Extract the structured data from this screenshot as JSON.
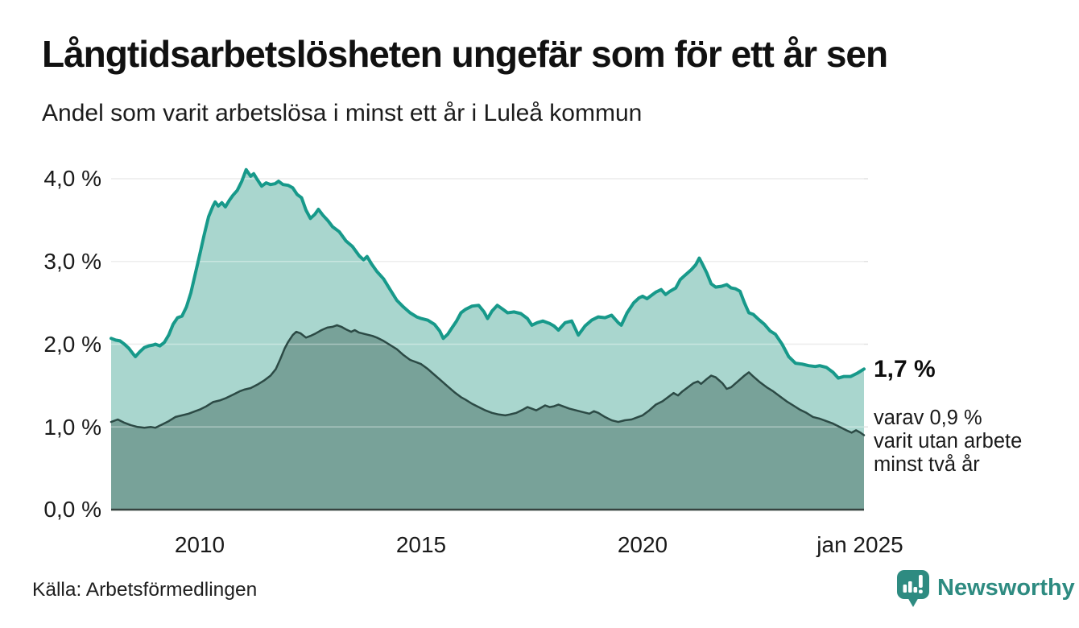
{
  "header": {
    "title": "Långtidsarbetslösheten ungefär som för ett år sen",
    "subtitle": "Andel som varit arbetslösa i minst ett år i Luleå kommun"
  },
  "annotations": {
    "latest_value": "1,7 %",
    "secondary_line1": "varav 0,9 %",
    "secondary_line2": "varit utan arbete",
    "secondary_line3": "minst två år"
  },
  "footer": {
    "source": "Källa: Arbetsförmedlingen",
    "brand_name": "Newsworthy",
    "brand_color": "#2e8b81",
    "brand_icon": "newsworthy-speech-bubble-bar-chart-icon"
  },
  "chart_data": {
    "type": "area",
    "title": "Långtidsarbetslösheten ungefär som för ett år sen",
    "xlabel": "",
    "ylabel": "",
    "x_range_years": [
      2008.0,
      2025.0
    ],
    "ylim": [
      0.0,
      4.3
    ],
    "grid": true,
    "gridline_color": "#e2e2e2",
    "baseline_color": "#36423f",
    "y_ticks": [
      {
        "label": "0,0 %",
        "value": 0.0
      },
      {
        "label": "1,0 %",
        "value": 1.0
      },
      {
        "label": "2,0 %",
        "value": 2.0
      },
      {
        "label": "3,0 %",
        "value": 3.0
      },
      {
        "label": "4,0 %",
        "value": 4.0
      }
    ],
    "x_ticks": [
      {
        "label": "2010",
        "year": 2010
      },
      {
        "label": "2015",
        "year": 2015
      },
      {
        "label": "2020",
        "year": 2020
      },
      {
        "label": "jan 2025",
        "year": 2025
      }
    ],
    "series": [
      {
        "name": "Arbetslösa minst ett år",
        "line_color": "#17998a",
        "fill_color": "#a9d6ce",
        "line_width": 4,
        "points": [
          [
            2008.0,
            2.07
          ],
          [
            2008.1,
            2.05
          ],
          [
            2008.2,
            2.04
          ],
          [
            2008.3,
            2.0
          ],
          [
            2008.4,
            1.95
          ],
          [
            2008.5,
            1.88
          ],
          [
            2008.55,
            1.85
          ],
          [
            2008.65,
            1.91
          ],
          [
            2008.75,
            1.96
          ],
          [
            2008.85,
            1.98
          ],
          [
            2008.95,
            1.99
          ],
          [
            2009.0,
            2.0
          ],
          [
            2009.1,
            1.98
          ],
          [
            2009.2,
            2.02
          ],
          [
            2009.3,
            2.11
          ],
          [
            2009.4,
            2.24
          ],
          [
            2009.5,
            2.32
          ],
          [
            2009.6,
            2.34
          ],
          [
            2009.7,
            2.45
          ],
          [
            2009.8,
            2.62
          ],
          [
            2009.9,
            2.85
          ],
          [
            2010.0,
            3.08
          ],
          [
            2010.1,
            3.32
          ],
          [
            2010.2,
            3.54
          ],
          [
            2010.3,
            3.67
          ],
          [
            2010.35,
            3.72
          ],
          [
            2010.42,
            3.67
          ],
          [
            2010.5,
            3.71
          ],
          [
            2010.58,
            3.66
          ],
          [
            2010.67,
            3.74
          ],
          [
            2010.75,
            3.8
          ],
          [
            2010.85,
            3.86
          ],
          [
            2010.95,
            3.97
          ],
          [
            2011.05,
            4.11
          ],
          [
            2011.15,
            4.03
          ],
          [
            2011.22,
            4.06
          ],
          [
            2011.3,
            3.99
          ],
          [
            2011.4,
            3.91
          ],
          [
            2011.5,
            3.95
          ],
          [
            2011.6,
            3.93
          ],
          [
            2011.7,
            3.94
          ],
          [
            2011.78,
            3.97
          ],
          [
            2011.88,
            3.93
          ],
          [
            2012.0,
            3.92
          ],
          [
            2012.1,
            3.89
          ],
          [
            2012.2,
            3.81
          ],
          [
            2012.3,
            3.77
          ],
          [
            2012.4,
            3.62
          ],
          [
            2012.5,
            3.52
          ],
          [
            2012.6,
            3.57
          ],
          [
            2012.68,
            3.63
          ],
          [
            2012.78,
            3.56
          ],
          [
            2012.9,
            3.49
          ],
          [
            2013.0,
            3.42
          ],
          [
            2013.15,
            3.36
          ],
          [
            2013.3,
            3.25
          ],
          [
            2013.45,
            3.18
          ],
          [
            2013.6,
            3.07
          ],
          [
            2013.7,
            3.02
          ],
          [
            2013.78,
            3.06
          ],
          [
            2013.88,
            2.97
          ],
          [
            2014.0,
            2.88
          ],
          [
            2014.15,
            2.79
          ],
          [
            2014.3,
            2.66
          ],
          [
            2014.45,
            2.53
          ],
          [
            2014.6,
            2.45
          ],
          [
            2014.75,
            2.38
          ],
          [
            2014.9,
            2.33
          ],
          [
            2015.0,
            2.31
          ],
          [
            2015.15,
            2.29
          ],
          [
            2015.3,
            2.24
          ],
          [
            2015.42,
            2.16
          ],
          [
            2015.5,
            2.07
          ],
          [
            2015.6,
            2.12
          ],
          [
            2015.7,
            2.2
          ],
          [
            2015.8,
            2.28
          ],
          [
            2015.9,
            2.38
          ],
          [
            2016.0,
            2.42
          ],
          [
            2016.15,
            2.46
          ],
          [
            2016.3,
            2.47
          ],
          [
            2016.42,
            2.39
          ],
          [
            2016.5,
            2.31
          ],
          [
            2016.6,
            2.4
          ],
          [
            2016.72,
            2.47
          ],
          [
            2016.85,
            2.42
          ],
          [
            2016.95,
            2.38
          ],
          [
            2017.1,
            2.39
          ],
          [
            2017.25,
            2.37
          ],
          [
            2017.4,
            2.31
          ],
          [
            2017.5,
            2.23
          ],
          [
            2017.62,
            2.26
          ],
          [
            2017.75,
            2.28
          ],
          [
            2017.9,
            2.25
          ],
          [
            2018.0,
            2.22
          ],
          [
            2018.1,
            2.17
          ],
          [
            2018.25,
            2.26
          ],
          [
            2018.4,
            2.28
          ],
          [
            2018.55,
            2.11
          ],
          [
            2018.7,
            2.22
          ],
          [
            2018.85,
            2.29
          ],
          [
            2019.0,
            2.33
          ],
          [
            2019.15,
            2.32
          ],
          [
            2019.3,
            2.35
          ],
          [
            2019.45,
            2.26
          ],
          [
            2019.52,
            2.23
          ],
          [
            2019.65,
            2.38
          ],
          [
            2019.8,
            2.5
          ],
          [
            2019.92,
            2.56
          ],
          [
            2020.0,
            2.58
          ],
          [
            2020.1,
            2.55
          ],
          [
            2020.2,
            2.59
          ],
          [
            2020.3,
            2.63
          ],
          [
            2020.42,
            2.66
          ],
          [
            2020.52,
            2.6
          ],
          [
            2020.62,
            2.64
          ],
          [
            2020.75,
            2.68
          ],
          [
            2020.85,
            2.78
          ],
          [
            2020.95,
            2.83
          ],
          [
            2021.1,
            2.9
          ],
          [
            2021.2,
            2.96
          ],
          [
            2021.28,
            3.04
          ],
          [
            2021.35,
            2.97
          ],
          [
            2021.45,
            2.86
          ],
          [
            2021.55,
            2.73
          ],
          [
            2021.65,
            2.69
          ],
          [
            2021.78,
            2.7
          ],
          [
            2021.9,
            2.72
          ],
          [
            2022.0,
            2.68
          ],
          [
            2022.1,
            2.67
          ],
          [
            2022.2,
            2.64
          ],
          [
            2022.3,
            2.5
          ],
          [
            2022.4,
            2.38
          ],
          [
            2022.5,
            2.36
          ],
          [
            2022.62,
            2.3
          ],
          [
            2022.75,
            2.24
          ],
          [
            2022.88,
            2.16
          ],
          [
            2023.0,
            2.12
          ],
          [
            2023.15,
            2.0
          ],
          [
            2023.3,
            1.85
          ],
          [
            2023.45,
            1.77
          ],
          [
            2023.6,
            1.76
          ],
          [
            2023.75,
            1.74
          ],
          [
            2023.9,
            1.73
          ],
          [
            2024.0,
            1.74
          ],
          [
            2024.15,
            1.72
          ],
          [
            2024.3,
            1.66
          ],
          [
            2024.42,
            1.59
          ],
          [
            2024.55,
            1.61
          ],
          [
            2024.7,
            1.61
          ],
          [
            2024.85,
            1.65
          ],
          [
            2025.0,
            1.7
          ]
        ]
      },
      {
        "name": "Varav utan arbete minst två år",
        "line_color": "#2c4a45",
        "fill_color": "#78a299",
        "line_width": 2.5,
        "points": [
          [
            2008.0,
            1.06
          ],
          [
            2008.15,
            1.09
          ],
          [
            2008.3,
            1.05
          ],
          [
            2008.45,
            1.02
          ],
          [
            2008.6,
            1.0
          ],
          [
            2008.75,
            0.99
          ],
          [
            2008.9,
            1.0
          ],
          [
            2009.0,
            0.99
          ],
          [
            2009.15,
            1.03
          ],
          [
            2009.3,
            1.07
          ],
          [
            2009.45,
            1.12
          ],
          [
            2009.6,
            1.14
          ],
          [
            2009.75,
            1.16
          ],
          [
            2009.9,
            1.19
          ],
          [
            2010.0,
            1.21
          ],
          [
            2010.15,
            1.25
          ],
          [
            2010.3,
            1.3
          ],
          [
            2010.45,
            1.32
          ],
          [
            2010.6,
            1.35
          ],
          [
            2010.75,
            1.39
          ],
          [
            2010.9,
            1.43
          ],
          [
            2011.0,
            1.45
          ],
          [
            2011.15,
            1.47
          ],
          [
            2011.3,
            1.51
          ],
          [
            2011.45,
            1.56
          ],
          [
            2011.6,
            1.62
          ],
          [
            2011.72,
            1.7
          ],
          [
            2011.82,
            1.82
          ],
          [
            2011.92,
            1.95
          ],
          [
            2012.0,
            2.03
          ],
          [
            2012.1,
            2.11
          ],
          [
            2012.18,
            2.15
          ],
          [
            2012.28,
            2.13
          ],
          [
            2012.4,
            2.08
          ],
          [
            2012.5,
            2.1
          ],
          [
            2012.62,
            2.13
          ],
          [
            2012.75,
            2.17
          ],
          [
            2012.88,
            2.2
          ],
          [
            2013.0,
            2.21
          ],
          [
            2013.1,
            2.23
          ],
          [
            2013.2,
            2.21
          ],
          [
            2013.3,
            2.18
          ],
          [
            2013.42,
            2.15
          ],
          [
            2013.5,
            2.17
          ],
          [
            2013.6,
            2.14
          ],
          [
            2013.75,
            2.12
          ],
          [
            2013.9,
            2.1
          ],
          [
            2014.0,
            2.08
          ],
          [
            2014.15,
            2.04
          ],
          [
            2014.3,
            1.99
          ],
          [
            2014.45,
            1.94
          ],
          [
            2014.6,
            1.87
          ],
          [
            2014.75,
            1.81
          ],
          [
            2014.9,
            1.78
          ],
          [
            2015.0,
            1.76
          ],
          [
            2015.15,
            1.7
          ],
          [
            2015.3,
            1.63
          ],
          [
            2015.45,
            1.56
          ],
          [
            2015.6,
            1.49
          ],
          [
            2015.75,
            1.42
          ],
          [
            2015.9,
            1.36
          ],
          [
            2016.0,
            1.33
          ],
          [
            2016.15,
            1.28
          ],
          [
            2016.3,
            1.24
          ],
          [
            2016.45,
            1.2
          ],
          [
            2016.6,
            1.17
          ],
          [
            2016.75,
            1.15
          ],
          [
            2016.9,
            1.14
          ],
          [
            2017.0,
            1.15
          ],
          [
            2017.15,
            1.17
          ],
          [
            2017.3,
            1.21
          ],
          [
            2017.4,
            1.24
          ],
          [
            2017.5,
            1.22
          ],
          [
            2017.6,
            1.2
          ],
          [
            2017.7,
            1.23
          ],
          [
            2017.8,
            1.26
          ],
          [
            2017.9,
            1.24
          ],
          [
            2018.0,
            1.25
          ],
          [
            2018.1,
            1.27
          ],
          [
            2018.2,
            1.25
          ],
          [
            2018.35,
            1.22
          ],
          [
            2018.5,
            1.2
          ],
          [
            2018.65,
            1.18
          ],
          [
            2018.8,
            1.16
          ],
          [
            2018.9,
            1.19
          ],
          [
            2019.0,
            1.17
          ],
          [
            2019.15,
            1.12
          ],
          [
            2019.3,
            1.08
          ],
          [
            2019.45,
            1.06
          ],
          [
            2019.6,
            1.08
          ],
          [
            2019.75,
            1.09
          ],
          [
            2019.9,
            1.12
          ],
          [
            2020.0,
            1.14
          ],
          [
            2020.15,
            1.2
          ],
          [
            2020.3,
            1.27
          ],
          [
            2020.45,
            1.31
          ],
          [
            2020.6,
            1.37
          ],
          [
            2020.7,
            1.41
          ],
          [
            2020.8,
            1.38
          ],
          [
            2020.9,
            1.43
          ],
          [
            2021.0,
            1.47
          ],
          [
            2021.15,
            1.53
          ],
          [
            2021.25,
            1.55
          ],
          [
            2021.32,
            1.52
          ],
          [
            2021.45,
            1.58
          ],
          [
            2021.55,
            1.62
          ],
          [
            2021.65,
            1.6
          ],
          [
            2021.8,
            1.53
          ],
          [
            2021.9,
            1.46
          ],
          [
            2022.0,
            1.48
          ],
          [
            2022.15,
            1.55
          ],
          [
            2022.3,
            1.62
          ],
          [
            2022.4,
            1.66
          ],
          [
            2022.5,
            1.61
          ],
          [
            2022.65,
            1.54
          ],
          [
            2022.8,
            1.48
          ],
          [
            2022.95,
            1.43
          ],
          [
            2023.1,
            1.37
          ],
          [
            2023.25,
            1.31
          ],
          [
            2023.4,
            1.26
          ],
          [
            2023.55,
            1.21
          ],
          [
            2023.7,
            1.17
          ],
          [
            2023.85,
            1.12
          ],
          [
            2024.0,
            1.1
          ],
          [
            2024.15,
            1.07
          ],
          [
            2024.3,
            1.04
          ],
          [
            2024.45,
            1.0
          ],
          [
            2024.6,
            0.96
          ],
          [
            2024.72,
            0.93
          ],
          [
            2024.82,
            0.96
          ],
          [
            2024.92,
            0.93
          ],
          [
            2025.0,
            0.9
          ]
        ]
      }
    ]
  }
}
